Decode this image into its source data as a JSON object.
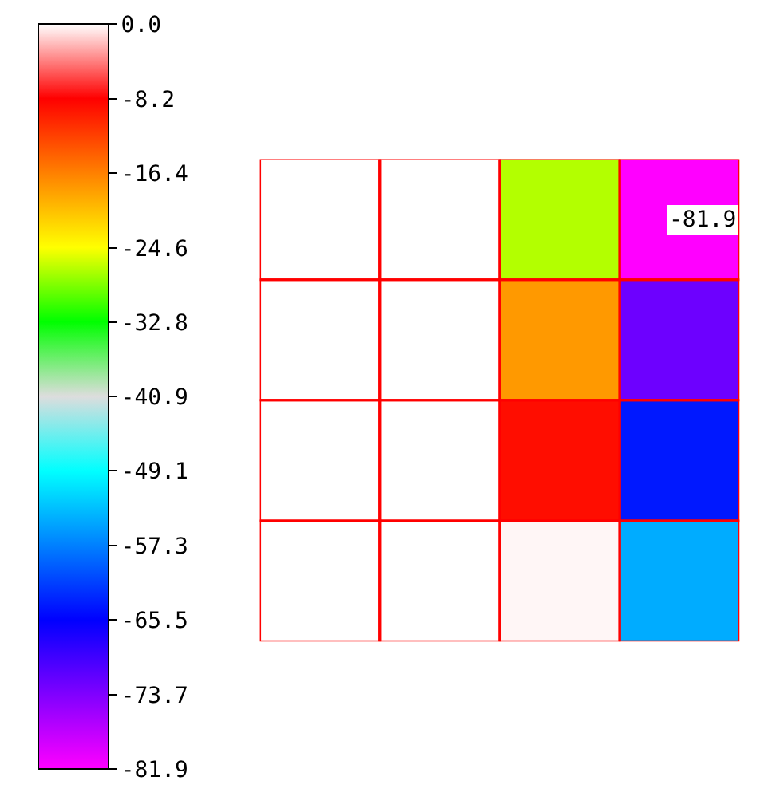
{
  "chart_data": {
    "type": "heatmap",
    "categories": [
      null,
      null,
      null,
      null
    ],
    "y_categories": [
      null,
      null,
      null,
      null
    ],
    "cells": [
      [
        null,
        null,
        -27,
        -81.9
      ],
      [
        null,
        null,
        -18,
        -72.5
      ],
      [
        null,
        null,
        -9,
        -64
      ],
      [
        null,
        null,
        -0.3,
        -54.5
      ]
    ],
    "cell_labels": [
      [
        null,
        null,
        null,
        "-81.9"
      ],
      [
        null,
        null,
        null,
        null
      ],
      [
        null,
        null,
        null,
        null
      ],
      [
        null,
        null,
        null,
        null
      ]
    ],
    "clim": [
      -81.9,
      0
    ],
    "cticks": [
      {
        "value": 0,
        "label": "0.0"
      },
      -8.2,
      -16.4,
      -24.6,
      -32.8,
      -40.9,
      -49.1,
      -57.3,
      -65.5,
      -73.7,
      -81.9
    ]
  }
}
